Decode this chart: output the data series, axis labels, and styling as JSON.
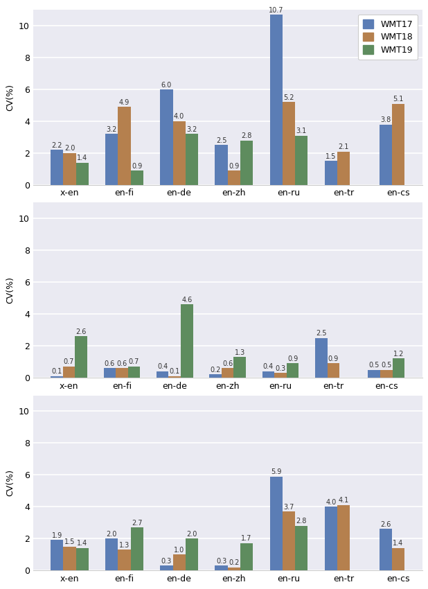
{
  "categories": [
    "x-en",
    "en-fi",
    "en-de",
    "en-zh",
    "en-ru",
    "en-tr",
    "en-cs"
  ],
  "subplot1": {
    "WMT17": [
      2.2,
      3.2,
      6.0,
      2.5,
      10.7,
      1.5,
      3.8
    ],
    "WMT18": [
      2.0,
      4.9,
      4.0,
      0.9,
      5.2,
      2.1,
      5.1
    ],
    "WMT19": [
      1.4,
      0.9,
      3.2,
      2.8,
      3.1,
      null,
      null
    ]
  },
  "subplot2": {
    "WMT17": [
      0.1,
      0.6,
      0.4,
      0.2,
      0.4,
      2.5,
      0.5
    ],
    "WMT18": [
      0.7,
      0.6,
      0.1,
      0.6,
      0.3,
      0.9,
      0.5
    ],
    "WMT19": [
      2.6,
      0.7,
      4.6,
      1.3,
      0.9,
      null,
      1.2
    ]
  },
  "subplot3": {
    "WMT17": [
      1.9,
      2.0,
      0.3,
      0.3,
      5.9,
      4.0,
      2.6
    ],
    "WMT18": [
      1.5,
      1.3,
      1.0,
      0.2,
      3.7,
      4.1,
      1.4
    ],
    "WMT19": [
      1.4,
      2.7,
      2.0,
      1.7,
      2.8,
      null,
      null
    ]
  },
  "colors": {
    "WMT17": "#5b7db5",
    "WMT18": "#b5804e",
    "WMT19": "#5e8c5e"
  },
  "ylabel": "CV(%)",
  "ylim": [
    0,
    11
  ],
  "yticks": [
    0,
    2,
    4,
    6,
    8,
    10
  ],
  "legend_labels": [
    "WMT17",
    "WMT18",
    "WMT19"
  ],
  "bar_width": 0.23,
  "fontsize_ticks": 9,
  "fontsize_annot": 7.0,
  "background_color": "#eaeaf2",
  "grid_color": "#ffffff",
  "spine_color": "#cccccc"
}
